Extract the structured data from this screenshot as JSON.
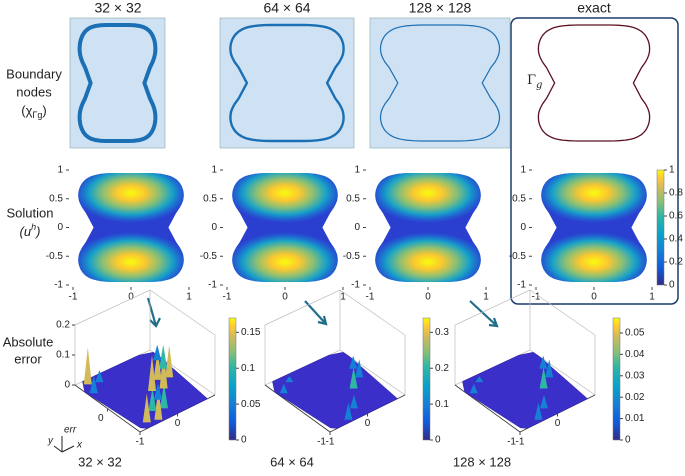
{
  "columns": [
    "32 × 32",
    "64 × 64",
    "128 × 128",
    "exact"
  ],
  "row_labels": {
    "boundary": {
      "lines": [
        "Boundary",
        "nodes"
      ],
      "symbol": [
        "(χ",
        "Γg",
        ")"
      ]
    },
    "solution": {
      "lines": [
        "Solution"
      ],
      "symbol": [
        "(u",
        "h",
        ")"
      ]
    },
    "error": {
      "lines": [
        "Absolute",
        "error"
      ]
    }
  },
  "gamma_label": [
    "Γ",
    "g"
  ],
  "solution_axes": {
    "xlim": [
      -1,
      1
    ],
    "ylim": [
      -1,
      1
    ],
    "xticks": [
      -1,
      0,
      1
    ],
    "yticks": [
      -1,
      -0.5,
      0,
      0.5,
      1
    ]
  },
  "solution_colorbar": {
    "lim": [
      0,
      1
    ],
    "ticks": [
      0,
      0.2,
      0.4,
      0.6,
      0.8,
      1
    ]
  },
  "error_plots": [
    {
      "label": "32 × 32",
      "zlim": [
        0,
        0.2
      ],
      "zticks": [
        0,
        0.1,
        0.2
      ],
      "xticks": [
        -1,
        0
      ],
      "yticks": [
        0
      ],
      "colorbar": {
        "lim": [
          0,
          0.17
        ],
        "ticks": [
          0,
          0.05,
          0.1,
          0.15
        ]
      }
    },
    {
      "label": "64 × 64",
      "zlim": [
        0,
        0.2
      ],
      "xticks": [
        -1,
        0
      ],
      "yticks": [
        -1
      ],
      "colorbar": {
        "lim": [
          0,
          0.34
        ],
        "ticks": [
          0,
          0.1,
          0.2,
          0.3
        ]
      }
    },
    {
      "label": "128 × 128",
      "zlim": [
        0,
        0.2
      ],
      "xticks": [
        -1,
        0
      ],
      "yticks": [
        -1
      ],
      "colorbar": {
        "lim": [
          0,
          0.057
        ],
        "ticks": [
          0,
          0.01,
          0.02,
          0.03,
          0.04,
          0.05
        ]
      }
    }
  ],
  "axes_key": {
    "z": "err",
    "y": "y",
    "x": "x"
  }
}
